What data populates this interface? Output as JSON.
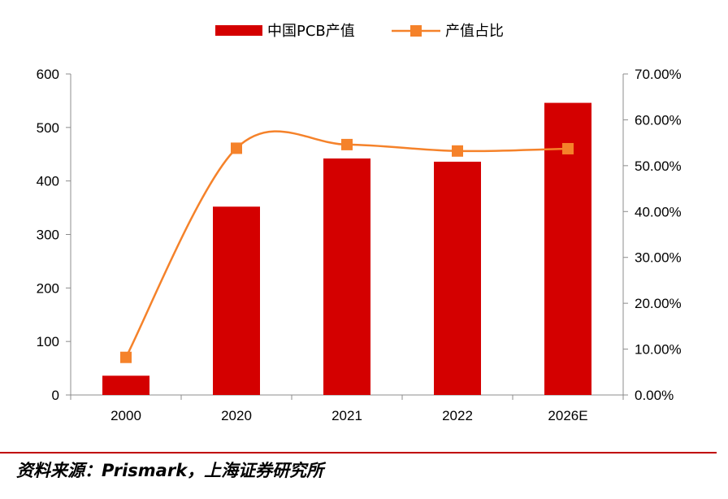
{
  "chart_data": {
    "type": "bar+line",
    "categories": [
      "2000",
      "2020",
      "2021",
      "2022",
      "2026E"
    ],
    "series": [
      {
        "name": "中国PCB产值",
        "type": "bar",
        "axis": "left",
        "color": "#d40000",
        "values": [
          36,
          352,
          442,
          436,
          546
        ]
      },
      {
        "name": "产值占比",
        "type": "line",
        "axis": "right",
        "color": "#f5822a",
        "values": [
          8.2,
          53.8,
          54.6,
          53.2,
          53.7
        ]
      }
    ],
    "y_left": {
      "min": 0,
      "max": 600,
      "ticks": [
        "0",
        "100",
        "200",
        "300",
        "400",
        "500",
        "600"
      ]
    },
    "y_right": {
      "min": 0,
      "max": 70,
      "ticks": [
        "0.00%",
        "10.00%",
        "20.00%",
        "30.00%",
        "40.00%",
        "50.00%",
        "60.00%",
        "70.00%"
      ]
    },
    "legend_position": "top-center",
    "grid": false
  },
  "source": "资料来源：Prismark，上海证券研究所"
}
